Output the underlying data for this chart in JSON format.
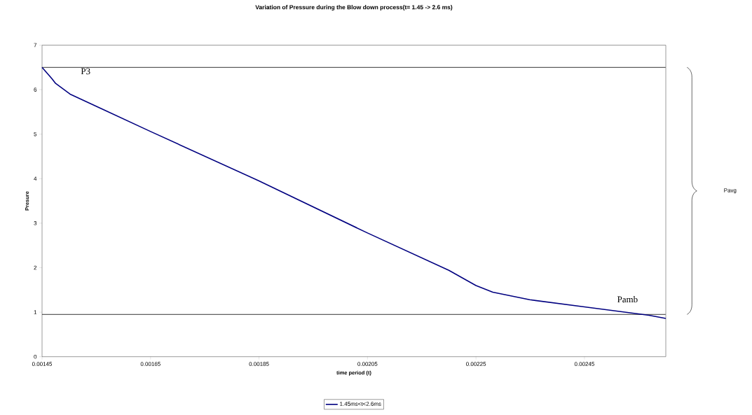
{
  "chart_data": {
    "type": "line",
    "title": "Variation of Pressure during the Blow down process(t= 1.45 -> 2.6 ms)",
    "xlabel": "time period (t)",
    "ylabel": "Presure",
    "x": [
      0.00145,
      0.001468,
      0.001475,
      0.0015016,
      0.00156,
      0.00165,
      0.00185,
      0.00205,
      0.0022,
      0.00225,
      0.002281,
      0.002349,
      0.00245,
      0.002569,
      0.0026
    ],
    "series": [
      {
        "name": "1.45ms<t<2.6ms",
        "color": "#000080",
        "values": [
          6.5,
          6.25,
          6.14,
          5.9,
          5.57,
          5.06,
          3.95,
          2.78,
          1.94,
          1.6,
          1.45,
          1.28,
          1.12,
          0.93,
          0.86
        ]
      }
    ],
    "xlim": [
      0.00145,
      0.0026
    ],
    "ylim": [
      0,
      7
    ],
    "xticks": [
      0.00145,
      0.00165,
      0.00185,
      0.00205,
      0.00225,
      0.00245
    ],
    "yticks": [
      0,
      1,
      2,
      3,
      4,
      5,
      6,
      7
    ],
    "ref_lines": [
      {
        "axis": "y",
        "value": 6.5,
        "color": "#000000"
      },
      {
        "axis": "y",
        "value": 0.95,
        "color": "#000000"
      }
    ],
    "annotations": [
      {
        "text": "P3",
        "x": 0.00152,
        "y": 6.5
      },
      {
        "text": "Pamb",
        "x": 0.00255,
        "y": 0.95
      },
      "Pavg"
    ],
    "grid": false,
    "legend": "bottom",
    "marker": "none",
    "line_style": "solid"
  }
}
